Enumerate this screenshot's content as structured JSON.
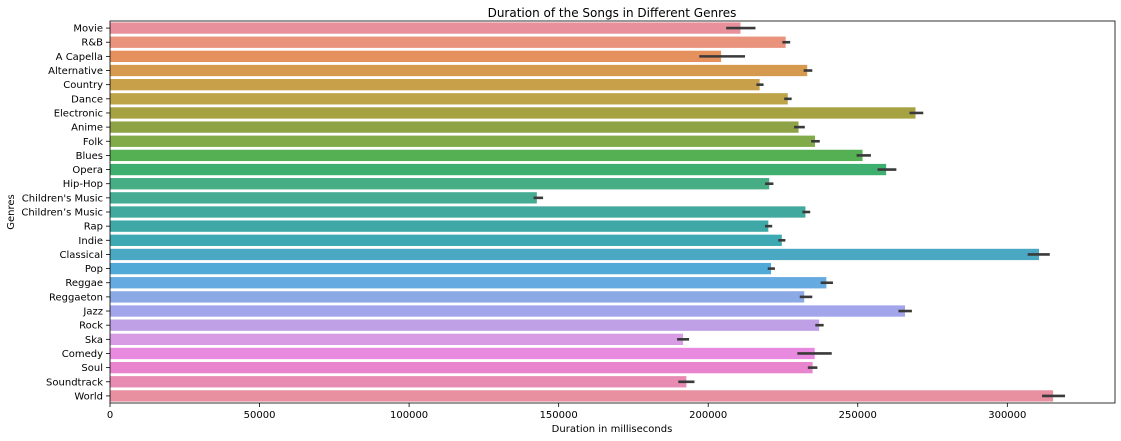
{
  "chart_data": {
    "type": "bar",
    "orientation": "horizontal",
    "title": "Duration of the Songs in Different Genres",
    "xlabel": "Duration in milliseconds",
    "ylabel": "Genres",
    "xlim": [
      0,
      336000
    ],
    "xticks": [
      0,
      50000,
      100000,
      150000,
      200000,
      250000,
      300000
    ],
    "grid": false,
    "categories": [
      "Movie",
      "R&B",
      "A Capella",
      "Alternative",
      "Country",
      "Dance",
      "Electronic",
      "Anime",
      "Folk",
      "Blues",
      "Opera",
      "Hip-Hop",
      "Children's Music",
      "Children’s Music",
      "Rap",
      "Indie",
      "Classical",
      "Pop",
      "Reggae",
      "Reggaeton",
      "Jazz",
      "Rock",
      "Ska",
      "Comedy",
      "Soul",
      "Soundtrack",
      "World"
    ],
    "values": [
      210800,
      225900,
      204300,
      233100,
      217200,
      226600,
      269300,
      230200,
      235700,
      251600,
      259500,
      220400,
      142700,
      232500,
      220100,
      224600,
      310600,
      221000,
      239500,
      232100,
      265800,
      237100,
      191600,
      235600,
      234900,
      192700,
      315300
    ],
    "ci_low": [
      206000,
      224800,
      197000,
      231900,
      216100,
      225400,
      267300,
      228700,
      234400,
      249600,
      256600,
      219000,
      141600,
      231500,
      219000,
      223400,
      306800,
      219900,
      237600,
      230600,
      263600,
      235800,
      189600,
      229800,
      233300,
      190000,
      311600
    ],
    "ci_high": [
      215800,
      227400,
      212300,
      234800,
      218500,
      227900,
      271900,
      232300,
      237300,
      254400,
      262900,
      221800,
      144800,
      234100,
      221400,
      225800,
      314200,
      222300,
      241700,
      234800,
      268100,
      238600,
      193600,
      241300,
      236500,
      195400,
      319300
    ],
    "colors": [
      "#e8909b",
      "#e9937c",
      "#e5915e",
      "#d69a4f",
      "#c9a04a",
      "#bda449",
      "#a6a242",
      "#8ea346",
      "#80ab48",
      "#55af53",
      "#3faf70",
      "#47ad84",
      "#45ab93",
      "#41a99e",
      "#40a7a7",
      "#3fa9b3",
      "#4aa8c2",
      "#50a9d7",
      "#65aae0",
      "#8aa9e5",
      "#a3a5eb",
      "#bfa0e6",
      "#d89ce5",
      "#e78ae0",
      "#e985cf",
      "#e88bb3",
      "#e88fa0"
    ],
    "error_color": "#3a3a3a"
  }
}
